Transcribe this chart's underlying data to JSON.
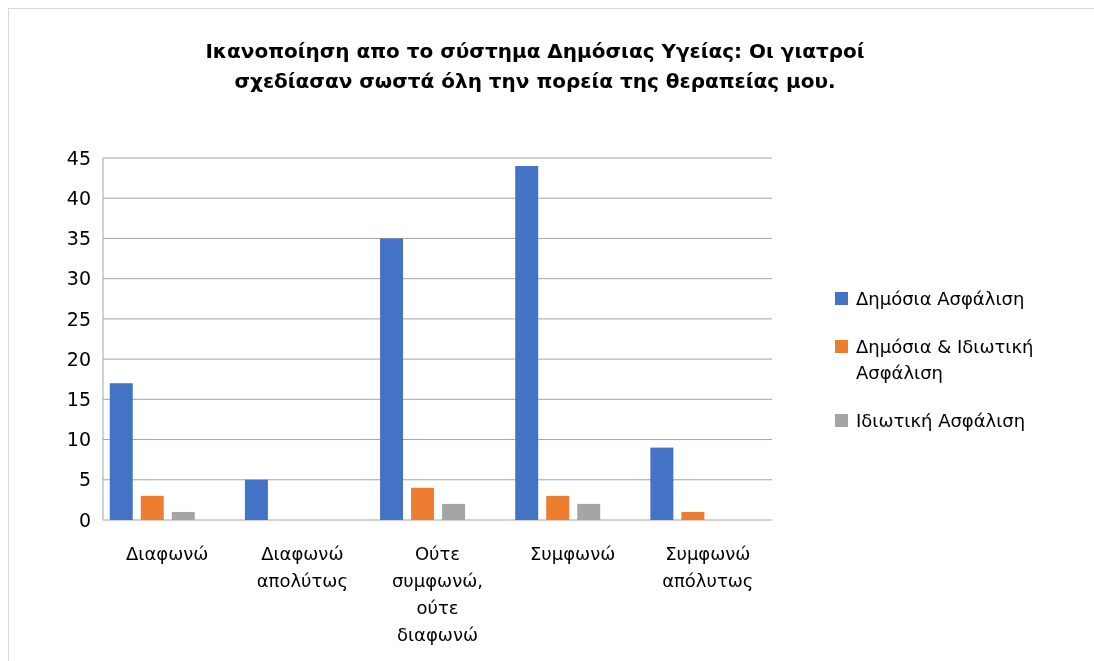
{
  "chart_data": {
    "type": "bar",
    "title": "Ικανοποίηση απο το σύστημα Δημόσιας Υγείας: Οι γιατροί σχεδίασαν σωστά όλη την πορεία της θεραπείας μου.",
    "categories": [
      "Διαφωνώ",
      "Διαφωνώ απολύτως",
      "Ούτε συμφωνώ, ούτε διαφωνώ",
      "Συμφωνώ",
      "Συμφωνώ απόλυτως"
    ],
    "series": [
      {
        "name": "Δημόσια Ασφάλιση",
        "color": "#4472c4",
        "values": [
          17,
          5,
          35,
          44,
          9
        ]
      },
      {
        "name": "Δημόσια & Ιδιωτική Ασφάλιση",
        "color": "#ed7d31",
        "values": [
          3,
          0,
          4,
          3,
          1
        ]
      },
      {
        "name": "Ιδιωτική Ασφάλιση",
        "color": "#a5a5a5",
        "values": [
          1,
          0,
          2,
          2,
          0
        ]
      }
    ],
    "ylim": [
      0,
      45
    ],
    "yticks": [
      0,
      5,
      10,
      15,
      20,
      25,
      30,
      35,
      40,
      45
    ],
    "grid": "y",
    "legend": "right"
  }
}
